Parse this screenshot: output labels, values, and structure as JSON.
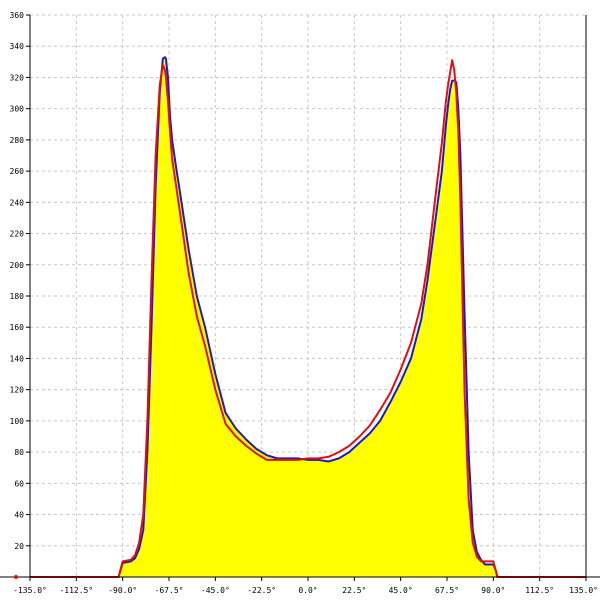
{
  "chart_data": {
    "type": "area",
    "title": "",
    "xlabel": "",
    "ylabel": "",
    "xlim": [
      -135,
      135
    ],
    "ylim": [
      0,
      360
    ],
    "grid": true,
    "x_ticks": [
      -135,
      -112.5,
      -90,
      -67.5,
      -45,
      -22.5,
      0,
      22.5,
      45,
      67.5,
      90,
      112.5,
      135
    ],
    "x_tick_labels": [
      "-135.0°",
      "-112.5°",
      "-90.0°",
      "-67.5°",
      "-45.0°",
      "-22.5°",
      "0.0°",
      "22.5°",
      "45.0°",
      "67.5°",
      "90.0°",
      "112.5°",
      "135.0°"
    ],
    "y_ticks": [
      20,
      40,
      60,
      80,
      100,
      120,
      140,
      160,
      180,
      200,
      220,
      240,
      260,
      280,
      300,
      320,
      340,
      360
    ],
    "y_tick_labels": [
      "20",
      "40",
      "60",
      "80",
      "100",
      "120",
      "140",
      "160",
      "180",
      "200",
      "220",
      "240",
      "260",
      "280",
      "300",
      "320",
      "340",
      "360"
    ],
    "series": [
      {
        "color": "#1a1acc",
        "fill": "#ffff00",
        "x": [
          -135,
          -95,
          -92,
          -90,
          -86,
          -84,
          -82,
          -80,
          -78,
          -76,
          -74,
          -72,
          -70.5,
          -69.5,
          -69,
          -68,
          -67,
          -66,
          -64,
          -62,
          -58,
          -54,
          -50,
          -45,
          -40,
          -35,
          -30,
          -25,
          -20,
          -15,
          -10,
          -5,
          0,
          5,
          10,
          15,
          20,
          25,
          30,
          35,
          40,
          45,
          50,
          55,
          58,
          62,
          65,
          67,
          68,
          69,
          70,
          71,
          72,
          73,
          74,
          75,
          76,
          78,
          80,
          82,
          84,
          86,
          88,
          90,
          91,
          92,
          95,
          135
        ],
        "y": [
          0,
          0,
          0,
          9,
          10,
          12,
          18,
          30,
          80,
          160,
          250,
          310,
          332,
          333,
          332,
          320,
          295,
          280,
          262,
          245,
          210,
          180,
          160,
          130,
          105,
          95,
          88,
          82,
          78,
          76,
          76,
          76,
          75,
          75,
          74,
          76,
          80,
          86,
          92,
          100,
          112,
          125,
          140,
          165,
          190,
          230,
          260,
          290,
          302,
          312,
          318,
          318,
          317,
          300,
          270,
          220,
          170,
          80,
          30,
          16,
          11,
          8,
          8,
          8,
          5,
          0,
          0,
          0
        ]
      },
      {
        "color": "#e01010",
        "x": [
          -135,
          -95,
          -92,
          -90,
          -86,
          -84,
          -82,
          -80,
          -78,
          -76,
          -74,
          -72,
          -70.5,
          -69.5,
          -69,
          -68,
          -67,
          -66,
          -64,
          -62,
          -58,
          -54,
          -50,
          -45,
          -40,
          -35,
          -30,
          -25,
          -20,
          -15,
          -10,
          -5,
          0,
          5,
          10,
          15,
          20,
          25,
          30,
          35,
          40,
          45,
          50,
          55,
          58,
          62,
          65,
          67,
          68,
          69,
          70,
          71,
          72,
          73,
          74,
          75,
          76,
          78,
          80,
          82,
          84,
          86,
          88,
          90,
          91,
          92,
          95,
          135
        ],
        "y": [
          0,
          0,
          0,
          10,
          11,
          14,
          22,
          40,
          100,
          190,
          270,
          315,
          328,
          325,
          320,
          305,
          285,
          268,
          250,
          232,
          195,
          167,
          148,
          120,
          98,
          90,
          84,
          79,
          75,
          75,
          75,
          75,
          76,
          76,
          77,
          80,
          84,
          90,
          97,
          107,
          118,
          133,
          150,
          175,
          200,
          245,
          278,
          305,
          315,
          323,
          331,
          325,
          310,
          285,
          240,
          180,
          120,
          50,
          22,
          13,
          10,
          10,
          10,
          10,
          5,
          0,
          0,
          0
        ]
      }
    ]
  }
}
